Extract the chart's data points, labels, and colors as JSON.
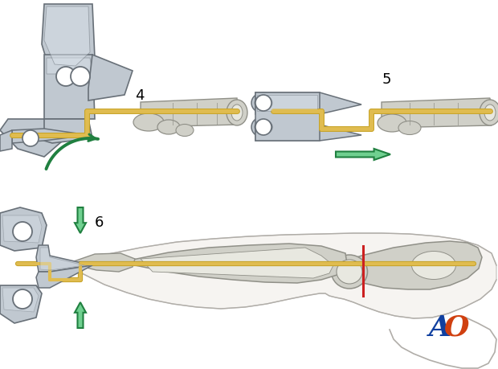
{
  "bg": "#ffffff",
  "wire": "#C8A428",
  "wire_hi": "#E0BC50",
  "bone": "#D0D0C8",
  "bone_hi": "#E8E8E0",
  "bone_ed": "#909088",
  "plier": "#C0C8D0",
  "plier_hi": "#D8E0E8",
  "plier_ed": "#687078",
  "plier_dk": "#A0A8B0",
  "green": "#40B060",
  "green_hi": "#70D090",
  "green_ed": "#208040",
  "red": "#CC2020",
  "ao_blue": "#1040A0",
  "ao_orange": "#D04010",
  "skin": "#F0EEE8",
  "skin_ed": "#B0ADA8"
}
